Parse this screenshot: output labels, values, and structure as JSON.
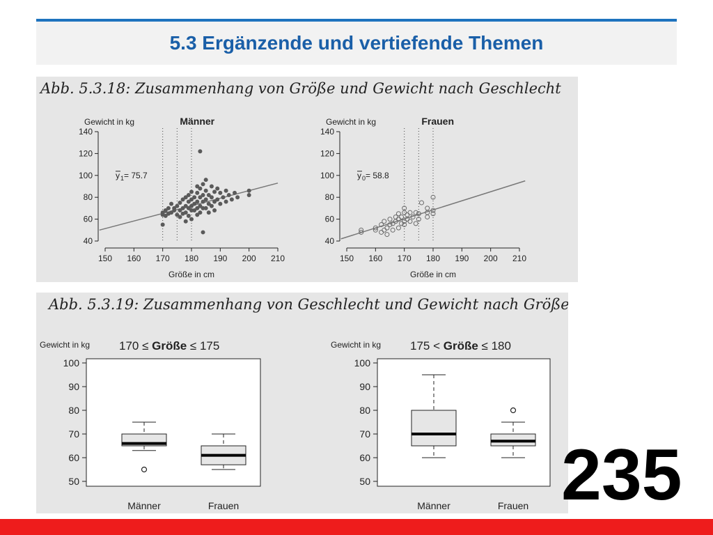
{
  "header": {
    "title": "5.3 Ergänzende und vertiefende Themen"
  },
  "page_number": "235",
  "colors": {
    "accent": "#1e73be",
    "title": "#1a5fa8",
    "footer": "#ee1c1c",
    "panel": "#e6e6e6"
  },
  "figures": {
    "fig1": {
      "caption": "Abb. 5.3.18: Zusammenhang von Größe und Gewicht nach Geschlecht"
    },
    "fig2": {
      "caption": "Abb. 5.3.19: Zusammenhang von Geschlecht und Gewicht nach Größe"
    }
  },
  "chart_data": [
    {
      "type": "scatter",
      "title": "Männer",
      "ylabel": "Gewicht in kg",
      "xlabel": "Größe in cm",
      "xlim": [
        150,
        210
      ],
      "ylim": [
        40,
        140
      ],
      "xticks": [
        150,
        160,
        170,
        180,
        190,
        200,
        210
      ],
      "yticks": [
        40,
        60,
        80,
        100,
        120,
        140
      ],
      "vlines": [
        170,
        175,
        180
      ],
      "annotation": {
        "symbol": "y",
        "sub": "1",
        "text": " = 75.7"
      },
      "marker": "filled",
      "regression": {
        "x": [
          148,
          210
        ],
        "y": [
          50,
          93
        ]
      },
      "points": [
        [
          170,
          64
        ],
        [
          170,
          55
        ],
        [
          170,
          66
        ],
        [
          171,
          68
        ],
        [
          171,
          63
        ],
        [
          172,
          70
        ],
        [
          172,
          65
        ],
        [
          173,
          74
        ],
        [
          173,
          66
        ],
        [
          174,
          70
        ],
        [
          174,
          68
        ],
        [
          175,
          72
        ],
        [
          175,
          64
        ],
        [
          176,
          75
        ],
        [
          176,
          68
        ],
        [
          176,
          62
        ],
        [
          177,
          78
        ],
        [
          177,
          70
        ],
        [
          177,
          65
        ],
        [
          178,
          80
        ],
        [
          178,
          72
        ],
        [
          178,
          66
        ],
        [
          178,
          58
        ],
        [
          179,
          82
        ],
        [
          179,
          76
        ],
        [
          179,
          70
        ],
        [
          179,
          63
        ],
        [
          180,
          85
        ],
        [
          180,
          78
        ],
        [
          180,
          72
        ],
        [
          180,
          68
        ],
        [
          180,
          60
        ],
        [
          181,
          80
        ],
        [
          181,
          74
        ],
        [
          181,
          68
        ],
        [
          182,
          90
        ],
        [
          182,
          84
        ],
        [
          182,
          76
        ],
        [
          182,
          70
        ],
        [
          182,
          64
        ],
        [
          183,
          122
        ],
        [
          183,
          88
        ],
        [
          183,
          80
        ],
        [
          183,
          72
        ],
        [
          183,
          66
        ],
        [
          184,
          92
        ],
        [
          184,
          82
        ],
        [
          184,
          76
        ],
        [
          184,
          70
        ],
        [
          184,
          48
        ],
        [
          185,
          96
        ],
        [
          185,
          86
        ],
        [
          185,
          78
        ],
        [
          185,
          70
        ],
        [
          186,
          82
        ],
        [
          186,
          74
        ],
        [
          186,
          66
        ],
        [
          187,
          90
        ],
        [
          187,
          80
        ],
        [
          187,
          72
        ],
        [
          188,
          85
        ],
        [
          188,
          76
        ],
        [
          188,
          68
        ],
        [
          189,
          88
        ],
        [
          189,
          78
        ],
        [
          190,
          84
        ],
        [
          190,
          74
        ],
        [
          191,
          80
        ],
        [
          192,
          86
        ],
        [
          192,
          76
        ],
        [
          193,
          82
        ],
        [
          194,
          78
        ],
        [
          195,
          84
        ],
        [
          196,
          80
        ],
        [
          200,
          86
        ],
        [
          200,
          82
        ]
      ]
    },
    {
      "type": "scatter",
      "title": "Frauen",
      "ylabel": "Gewicht in kg",
      "xlabel": "Größe in cm",
      "xlim": [
        150,
        210
      ],
      "ylim": [
        40,
        140
      ],
      "xticks": [
        150,
        160,
        170,
        180,
        190,
        200,
        210
      ],
      "yticks": [
        40,
        60,
        80,
        100,
        120,
        140
      ],
      "vlines": [
        170,
        175,
        180
      ],
      "annotation": {
        "symbol": "y",
        "sub": "0",
        "text": " = 58.8"
      },
      "marker": "open",
      "regression": {
        "x": [
          148,
          212
        ],
        "y": [
          42,
          95
        ]
      },
      "points": [
        [
          155,
          48
        ],
        [
          155,
          50
        ],
        [
          160,
          50
        ],
        [
          160,
          52
        ],
        [
          162,
          48
        ],
        [
          162,
          55
        ],
        [
          163,
          50
        ],
        [
          163,
          58
        ],
        [
          164,
          46
        ],
        [
          164,
          52
        ],
        [
          165,
          55
        ],
        [
          165,
          60
        ],
        [
          166,
          50
        ],
        [
          166,
          56
        ],
        [
          167,
          58
        ],
        [
          167,
          62
        ],
        [
          168,
          52
        ],
        [
          168,
          60
        ],
        [
          168,
          65
        ],
        [
          169,
          56
        ],
        [
          169,
          62
        ],
        [
          170,
          55
        ],
        [
          170,
          58
        ],
        [
          170,
          66
        ],
        [
          170,
          70
        ],
        [
          171,
          60
        ],
        [
          171,
          64
        ],
        [
          172,
          58
        ],
        [
          172,
          66
        ],
        [
          173,
          62
        ],
        [
          174,
          56
        ],
        [
          174,
          66
        ],
        [
          175,
          60
        ],
        [
          175,
          65
        ],
        [
          176,
          75
        ],
        [
          178,
          62
        ],
        [
          178,
          66
        ],
        [
          178,
          70
        ],
        [
          180,
          65
        ],
        [
          180,
          68
        ],
        [
          180,
          80
        ]
      ]
    },
    {
      "type": "box",
      "title_prefix": "170 ≤",
      "title_bold": "Größe",
      "title_suffix": "≤ 175",
      "ylabel": "Gewicht in kg",
      "ylim": [
        50,
        100
      ],
      "yticks": [
        50,
        60,
        70,
        80,
        90,
        100
      ],
      "categories": [
        "Männer",
        "Frauen"
      ],
      "boxes": [
        {
          "name": "Männer",
          "whisker_low": 63,
          "q1": 65,
          "median": 66,
          "q3": 70,
          "whisker_high": 75,
          "outliers": [
            55
          ]
        },
        {
          "name": "Frauen",
          "whisker_low": 55,
          "q1": 57,
          "median": 61,
          "q3": 65,
          "whisker_high": 70,
          "outliers": []
        }
      ]
    },
    {
      "type": "box",
      "title_prefix": "175 <",
      "title_bold": "Größe",
      "title_suffix": "≤ 180",
      "ylabel": "Gewicht in kg",
      "ylim": [
        50,
        100
      ],
      "yticks": [
        50,
        60,
        70,
        80,
        90,
        100
      ],
      "categories": [
        "Männer",
        "Frauen"
      ],
      "boxes": [
        {
          "name": "Männer",
          "whisker_low": 60,
          "q1": 65,
          "median": 70,
          "q3": 80,
          "whisker_high": 95,
          "outliers": []
        },
        {
          "name": "Frauen",
          "whisker_low": 60,
          "q1": 65,
          "median": 67,
          "q3": 70,
          "whisker_high": 75,
          "outliers": [
            80
          ]
        }
      ]
    }
  ]
}
